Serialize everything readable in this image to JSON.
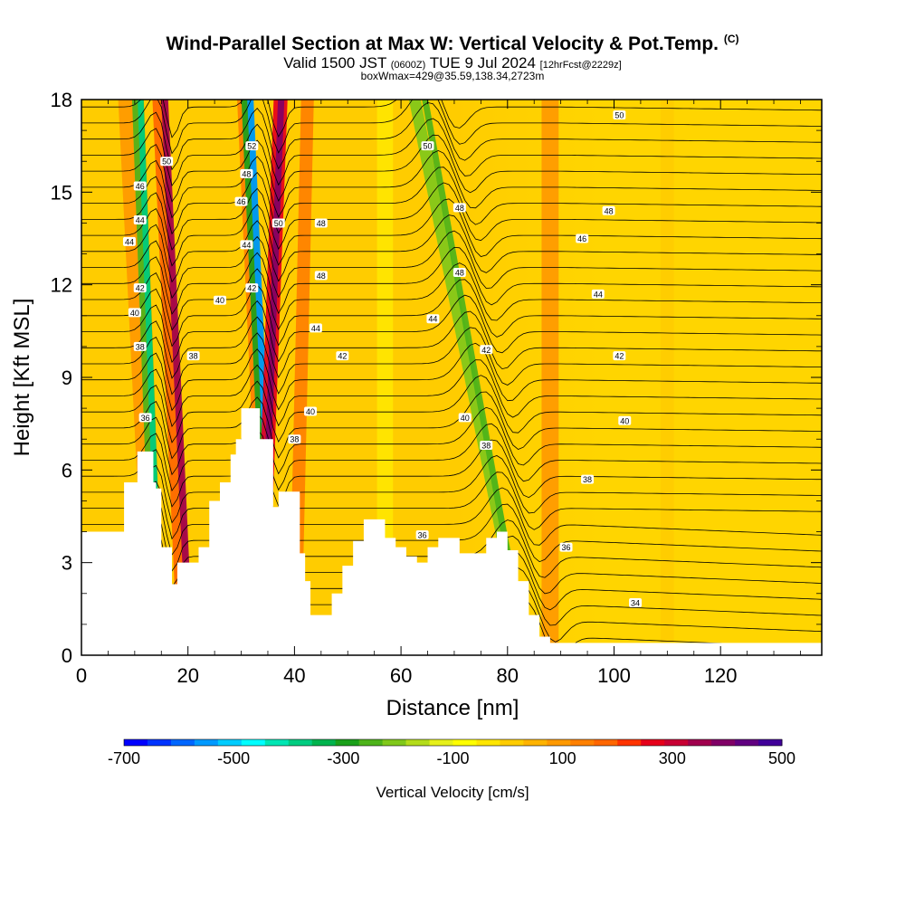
{
  "header": {
    "title": "Wind-Parallel Section at Max W: Vertical Velocity & Pot.Temp.",
    "title_mark": "(C)",
    "subtitle_valid": "Valid 1500 JST",
    "subtitle_utc": "(0600Z)",
    "subtitle_date": "TUE 9 Jul 2024",
    "subtitle_fcst": "[12hrFcst@2229z]",
    "subtitle_box": "boxWmax=429@35.59,138.34,2723m"
  },
  "chart_data": {
    "type": "heatmap",
    "xlabel": "Distance [nm]",
    "ylabel": "Height [Kft MSL]",
    "xlim": [
      0,
      139
    ],
    "ylim": [
      0,
      18
    ],
    "x_ticks": [
      0,
      20,
      40,
      60,
      80,
      100,
      120
    ],
    "y_ticks": [
      0,
      3,
      6,
      9,
      12,
      15,
      18
    ],
    "colorbar": {
      "label": "Vertical Velocity [cm/s]",
      "tick_labels": [
        "-700",
        "-500",
        "-300",
        "-100",
        "100",
        "300",
        "500"
      ],
      "colors": [
        "#0000ff",
        "#0033ff",
        "#0066ff",
        "#0099ff",
        "#00ccff",
        "#00ffff",
        "#00e6b3",
        "#00cc80",
        "#00b34d",
        "#1aa01a",
        "#4db31a",
        "#80c81a",
        "#b3dc1a",
        "#e6f01a",
        "#ffff00",
        "#ffe600",
        "#ffcc00",
        "#ffb300",
        "#ff9900",
        "#ff8000",
        "#ff6600",
        "#ff3300",
        "#e6001a",
        "#c80033",
        "#a0004d",
        "#800066",
        "#600080",
        "#400099"
      ]
    },
    "terrain": [
      [
        0,
        4
      ],
      [
        7,
        4
      ],
      [
        8,
        5.6
      ],
      [
        10,
        5.6
      ],
      [
        10.5,
        6.6
      ],
      [
        13,
        6.6
      ],
      [
        13.5,
        5.6
      ],
      [
        14,
        5.4
      ],
      [
        15,
        3.5
      ],
      [
        17,
        2.3
      ],
      [
        18,
        3
      ],
      [
        20,
        3
      ],
      [
        22,
        3.5
      ],
      [
        24,
        5
      ],
      [
        26,
        5.6
      ],
      [
        28,
        6.5
      ],
      [
        29,
        7
      ],
      [
        30,
        8
      ],
      [
        33,
        8
      ],
      [
        33.5,
        7
      ],
      [
        35,
        7
      ],
      [
        36,
        4.8
      ],
      [
        37,
        5.3
      ],
      [
        40,
        5.3
      ],
      [
        41,
        3.3
      ],
      [
        42,
        2.4
      ],
      [
        43,
        1.3
      ],
      [
        45,
        1.3
      ],
      [
        47,
        2
      ],
      [
        49,
        2.9
      ],
      [
        51,
        3.7
      ],
      [
        53,
        4.4
      ],
      [
        55,
        4.4
      ],
      [
        57,
        3.8
      ],
      [
        59,
        3.5
      ],
      [
        61,
        3.2
      ],
      [
        63,
        3
      ],
      [
        65,
        3.5
      ],
      [
        67,
        3.8
      ],
      [
        69,
        3.8
      ],
      [
        71,
        3.3
      ],
      [
        74,
        3.3
      ],
      [
        76,
        3.8
      ],
      [
        78,
        4
      ],
      [
        80,
        3.4
      ],
      [
        82,
        2.4
      ],
      [
        84,
        1.3
      ],
      [
        86,
        0.6
      ],
      [
        88,
        0.4
      ],
      [
        139,
        0.4
      ]
    ],
    "theta_contour_labels": [
      {
        "label": "50",
        "x": 16,
        "y": 16
      },
      {
        "label": "46",
        "x": 11,
        "y": 15.2
      },
      {
        "label": "44",
        "x": 11,
        "y": 14.1
      },
      {
        "label": "44",
        "x": 9,
        "y": 13.4
      },
      {
        "label": "42",
        "x": 11,
        "y": 11.9
      },
      {
        "label": "40",
        "x": 10,
        "y": 11.1
      },
      {
        "label": "38",
        "x": 11,
        "y": 10
      },
      {
        "label": "36",
        "x": 12,
        "y": 7.7
      },
      {
        "label": "52",
        "x": 32,
        "y": 16.5
      },
      {
        "label": "48",
        "x": 31,
        "y": 15.6
      },
      {
        "label": "46",
        "x": 30,
        "y": 14.7
      },
      {
        "label": "44",
        "x": 31,
        "y": 13.3
      },
      {
        "label": "42",
        "x": 32,
        "y": 11.9
      },
      {
        "label": "40",
        "x": 26,
        "y": 11.5
      },
      {
        "label": "38",
        "x": 21,
        "y": 9.7
      },
      {
        "label": "50",
        "x": 37,
        "y": 14
      },
      {
        "label": "48",
        "x": 45,
        "y": 14
      },
      {
        "label": "48",
        "x": 45,
        "y": 12.3
      },
      {
        "label": "44",
        "x": 44,
        "y": 10.6
      },
      {
        "label": "42",
        "x": 49,
        "y": 9.7
      },
      {
        "label": "40",
        "x": 43,
        "y": 7.9
      },
      {
        "label": "38",
        "x": 40,
        "y": 7
      },
      {
        "label": "50",
        "x": 65,
        "y": 16.5
      },
      {
        "label": "48",
        "x": 71,
        "y": 14.5
      },
      {
        "label": "48",
        "x": 71,
        "y": 12.4
      },
      {
        "label": "44",
        "x": 66,
        "y": 10.9
      },
      {
        "label": "42",
        "x": 76,
        "y": 9.9
      },
      {
        "label": "40",
        "x": 72,
        "y": 7.7
      },
      {
        "label": "38",
        "x": 76,
        "y": 6.8
      },
      {
        "label": "36",
        "x": 64,
        "y": 3.9
      },
      {
        "label": "50",
        "x": 101,
        "y": 17.5
      },
      {
        "label": "48",
        "x": 99,
        "y": 14.4
      },
      {
        "label": "46",
        "x": 94,
        "y": 13.5
      },
      {
        "label": "44",
        "x": 97,
        "y": 11.7
      },
      {
        "label": "42",
        "x": 101,
        "y": 9.7
      },
      {
        "label": "40",
        "x": 102,
        "y": 7.6
      },
      {
        "label": "38",
        "x": 95,
        "y": 5.7
      },
      {
        "label": "36",
        "x": 91,
        "y": 3.5
      },
      {
        "label": "34",
        "x": 104,
        "y": 1.7
      }
    ]
  }
}
